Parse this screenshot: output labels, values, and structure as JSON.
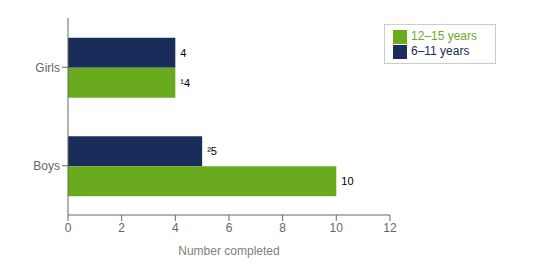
{
  "chart_data": {
    "type": "bar",
    "orientation": "horizontal",
    "categories": [
      "Boys",
      "Girls"
    ],
    "series": [
      {
        "name": "6–11 years",
        "color": "#1a2d5a",
        "values": [
          5,
          4
        ],
        "value_labels": [
          "²5",
          "4"
        ]
      },
      {
        "name": "12–15 years",
        "color": "#6aaa1e",
        "values": [
          10,
          4
        ],
        "value_labels": [
          "10",
          "¹4"
        ]
      }
    ],
    "xlabel": "Number completed",
    "xlim": [
      0,
      12
    ],
    "xticks": [
      0,
      2,
      4,
      6,
      8,
      10,
      12
    ],
    "data_labels": true,
    "legend": "upper right",
    "grid": false
  }
}
